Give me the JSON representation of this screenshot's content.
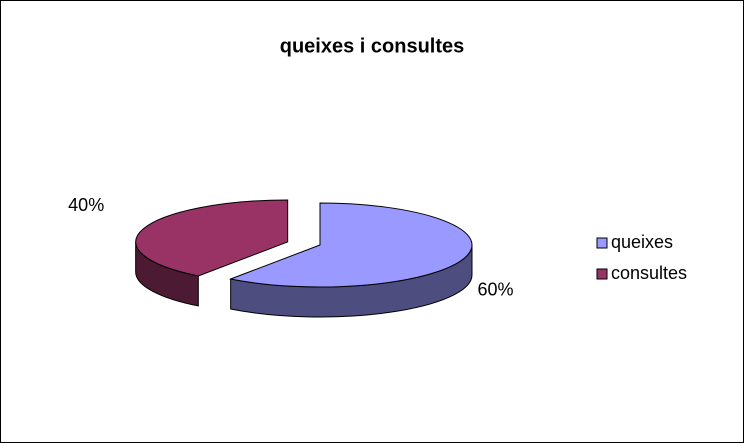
{
  "chart_data": {
    "type": "pie",
    "title": "queixes i consultes",
    "categories": [
      "queixes",
      "consultes"
    ],
    "values": [
      60,
      40
    ],
    "value_labels": [
      "60%",
      "40%"
    ],
    "colors": [
      "#9999ff",
      "#993366"
    ],
    "legend": "right"
  }
}
